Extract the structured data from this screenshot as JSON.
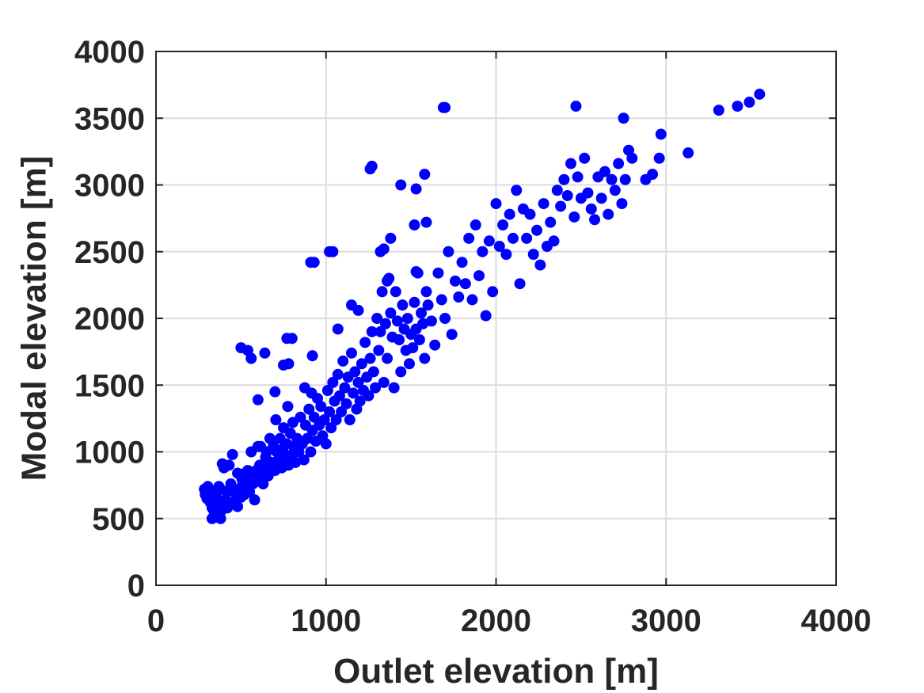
{
  "chart_data": {
    "type": "scatter",
    "title": "",
    "xlabel": "Outlet elevation [m]",
    "ylabel": "Modal elevation [m]",
    "xlim": [
      0,
      4000
    ],
    "ylim": [
      0,
      4000
    ],
    "xticks": [
      0,
      1000,
      2000,
      3000,
      4000
    ],
    "yticks": [
      0,
      500,
      1000,
      1500,
      2000,
      2500,
      3000,
      3500,
      4000
    ],
    "grid": true,
    "legend": "none",
    "marker_color": "#0000ff",
    "series": [
      {
        "points": [
          [
            285,
            720
          ],
          [
            290,
            680
          ],
          [
            300,
            650
          ],
          [
            305,
            740
          ],
          [
            310,
            700
          ],
          [
            320,
            620
          ],
          [
            330,
            500
          ],
          [
            340,
            560
          ],
          [
            350,
            700
          ],
          [
            355,
            660
          ],
          [
            360,
            510
          ],
          [
            370,
            740
          ],
          [
            375,
            600
          ],
          [
            380,
            500
          ],
          [
            385,
            560
          ],
          [
            390,
            910
          ],
          [
            400,
            880
          ],
          [
            410,
            640
          ],
          [
            415,
            700
          ],
          [
            420,
            580
          ],
          [
            430,
            900
          ],
          [
            440,
            760
          ],
          [
            450,
            980
          ],
          [
            455,
            620
          ],
          [
            460,
            700
          ],
          [
            470,
            640
          ],
          [
            480,
            590
          ],
          [
            490,
            720
          ],
          [
            500,
            660
          ],
          [
            505,
            800
          ],
          [
            510,
            760
          ],
          [
            520,
            680
          ],
          [
            525,
            840
          ],
          [
            530,
            780
          ],
          [
            540,
            860
          ],
          [
            550,
            700
          ],
          [
            560,
            820
          ],
          [
            570,
            760
          ],
          [
            580,
            640
          ],
          [
            590,
            860
          ],
          [
            600,
            780
          ],
          [
            610,
            900
          ],
          [
            615,
            1040
          ],
          [
            620,
            820
          ],
          [
            630,
            760
          ],
          [
            640,
            880
          ],
          [
            645,
            960
          ],
          [
            650,
            1000
          ],
          [
            660,
            820
          ],
          [
            670,
            1100
          ],
          [
            680,
            920
          ],
          [
            690,
            1040
          ],
          [
            700,
            860
          ],
          [
            705,
            1240
          ],
          [
            710,
            1000
          ],
          [
            720,
            940
          ],
          [
            730,
            1100
          ],
          [
            740,
            880
          ],
          [
            745,
            1020
          ],
          [
            750,
            1180
          ],
          [
            760,
            960
          ],
          [
            770,
            1060
          ],
          [
            775,
            1340
          ],
          [
            780,
            900
          ],
          [
            790,
            1140
          ],
          [
            800,
            980
          ],
          [
            805,
            1220
          ],
          [
            810,
            1040
          ],
          [
            820,
            920
          ],
          [
            830,
            1100
          ],
          [
            840,
            1000
          ],
          [
            850,
            1260
          ],
          [
            860,
            1060
          ],
          [
            870,
            940
          ],
          [
            875,
            1480
          ],
          [
            880,
            1200
          ],
          [
            890,
            1100
          ],
          [
            900,
            1320
          ],
          [
            910,
            1000
          ],
          [
            915,
            1440
          ],
          [
            920,
            1160
          ],
          [
            930,
            1260
          ],
          [
            940,
            1080
          ],
          [
            950,
            1400
          ],
          [
            960,
            1200
          ],
          [
            970,
            1340
          ],
          [
            980,
            1120
          ],
          [
            990,
            1240
          ],
          [
            1000,
            1060
          ],
          [
            1010,
            1460
          ],
          [
            1020,
            1300
          ],
          [
            1030,
            1180
          ],
          [
            1040,
            1520
          ],
          [
            1050,
            1380
          ],
          [
            1060,
            1240
          ],
          [
            1070,
            1580
          ],
          [
            1080,
            1420
          ],
          [
            1090,
            1300
          ],
          [
            1100,
            1680
          ],
          [
            1110,
            1480
          ],
          [
            1120,
            1360
          ],
          [
            1130,
            1560
          ],
          [
            1140,
            1240
          ],
          [
            1150,
            1740
          ],
          [
            1160,
            1440
          ],
          [
            1170,
            1600
          ],
          [
            1180,
            1320
          ],
          [
            1190,
            1520
          ],
          [
            1200,
            1380
          ],
          [
            1210,
            1660
          ],
          [
            1220,
            1460
          ],
          [
            1230,
            1820
          ],
          [
            1240,
            1560
          ],
          [
            1250,
            1420
          ],
          [
            1260,
            1700
          ],
          [
            1270,
            1900
          ],
          [
            1280,
            1600
          ],
          [
            1290,
            1480
          ],
          [
            1300,
            2000
          ],
          [
            1310,
            1760
          ],
          [
            1320,
            1900
          ],
          [
            1330,
            2200
          ],
          [
            1340,
            1520
          ],
          [
            1350,
            1960
          ],
          [
            1360,
            1700
          ],
          [
            1370,
            2300
          ],
          [
            1380,
            2040
          ],
          [
            1390,
            1860
          ],
          [
            1400,
            1480
          ],
          [
            1410,
            2200
          ],
          [
            1420,
            1980
          ],
          [
            1430,
            1840
          ],
          [
            1440,
            1600
          ],
          [
            1450,
            2100
          ],
          [
            1460,
            1920
          ],
          [
            1470,
            1760
          ],
          [
            1480,
            2000
          ],
          [
            1490,
            1660
          ],
          [
            1500,
            1880
          ],
          [
            1510,
            1780
          ],
          [
            1520,
            2120
          ],
          [
            1530,
            1920
          ],
          [
            1540,
            2340
          ],
          [
            1550,
            1840
          ],
          [
            1560,
            2040
          ],
          [
            1570,
            1960
          ],
          [
            1580,
            1700
          ],
          [
            1590,
            2200
          ],
          [
            1600,
            2100
          ],
          [
            1620,
            1980
          ],
          [
            1640,
            1800
          ],
          [
            1660,
            2340
          ],
          [
            1680,
            2140
          ],
          [
            1700,
            2000
          ],
          [
            1720,
            2500
          ],
          [
            1740,
            1880
          ],
          [
            1760,
            2280
          ],
          [
            1780,
            2160
          ],
          [
            1800,
            2420
          ],
          [
            1820,
            2260
          ],
          [
            1840,
            2600
          ],
          [
            1860,
            2140
          ],
          [
            1880,
            2700
          ],
          [
            1900,
            2320
          ],
          [
            1920,
            2500
          ],
          [
            1940,
            2020
          ],
          [
            1960,
            2580
          ],
          [
            1980,
            2200
          ],
          [
            2000,
            2860
          ],
          [
            2020,
            2540
          ],
          [
            2040,
            2700
          ],
          [
            2060,
            2480
          ],
          [
            2080,
            2780
          ],
          [
            2100,
            2600
          ],
          [
            2120,
            2960
          ],
          [
            2140,
            2260
          ],
          [
            2160,
            2820
          ],
          [
            2180,
            2600
          ],
          [
            2200,
            2780
          ],
          [
            2220,
            2480
          ],
          [
            2240,
            2660
          ],
          [
            2260,
            2400
          ],
          [
            2280,
            2860
          ],
          [
            2300,
            2540
          ],
          [
            2320,
            2720
          ],
          [
            2340,
            2580
          ],
          [
            2360,
            2960
          ],
          [
            2380,
            2840
          ],
          [
            2400,
            3040
          ],
          [
            2420,
            2920
          ],
          [
            2440,
            3160
          ],
          [
            2460,
            2760
          ],
          [
            2480,
            3060
          ],
          [
            2500,
            2900
          ],
          [
            2520,
            3200
          ],
          [
            2540,
            2940
          ],
          [
            2560,
            2820
          ],
          [
            2580,
            2740
          ],
          [
            2600,
            3060
          ],
          [
            2620,
            2900
          ],
          [
            2640,
            3100
          ],
          [
            2660,
            2780
          ],
          [
            2680,
            3040
          ],
          [
            2700,
            2960
          ],
          [
            2720,
            3160
          ],
          [
            2740,
            2860
          ],
          [
            2760,
            3040
          ],
          [
            2780,
            3260
          ],
          [
            2800,
            3200
          ],
          [
            2880,
            3040
          ],
          [
            2920,
            3080
          ],
          [
            2960,
            3200
          ],
          [
            2970,
            3380
          ],
          [
            3130,
            3240
          ],
          [
            1260,
            3120
          ],
          [
            1270,
            3140
          ],
          [
            1440,
            3000
          ],
          [
            1530,
            2970
          ],
          [
            1580,
            3080
          ],
          [
            1690,
            3580
          ],
          [
            1700,
            3580
          ],
          [
            2470,
            3590
          ],
          [
            2750,
            3500
          ],
          [
            3310,
            3560
          ],
          [
            3420,
            3590
          ],
          [
            3490,
            3620
          ],
          [
            3550,
            3680
          ],
          [
            910,
            2420
          ],
          [
            930,
            2420
          ],
          [
            1020,
            2500
          ],
          [
            1040,
            2500
          ],
          [
            1320,
            2500
          ],
          [
            1340,
            2520
          ],
          [
            1380,
            2600
          ],
          [
            1520,
            2700
          ],
          [
            1590,
            2720
          ],
          [
            1530,
            2350
          ],
          [
            1360,
            2280
          ],
          [
            1150,
            2100
          ],
          [
            1190,
            2060
          ],
          [
            500,
            1780
          ],
          [
            540,
            1760
          ],
          [
            560,
            1700
          ],
          [
            640,
            1740
          ],
          [
            770,
            1850
          ],
          [
            800,
            1850
          ],
          [
            750,
            1650
          ],
          [
            780,
            1660
          ],
          [
            920,
            1720
          ],
          [
            1070,
            1920
          ],
          [
            600,
            1390
          ],
          [
            700,
            1450
          ],
          [
            560,
            1000
          ],
          [
            600,
            1040
          ],
          [
            480,
            840
          ],
          [
            440,
            620
          ],
          [
            360,
            640
          ],
          [
            380,
            720
          ],
          [
            330,
            580
          ]
        ]
      }
    ]
  }
}
